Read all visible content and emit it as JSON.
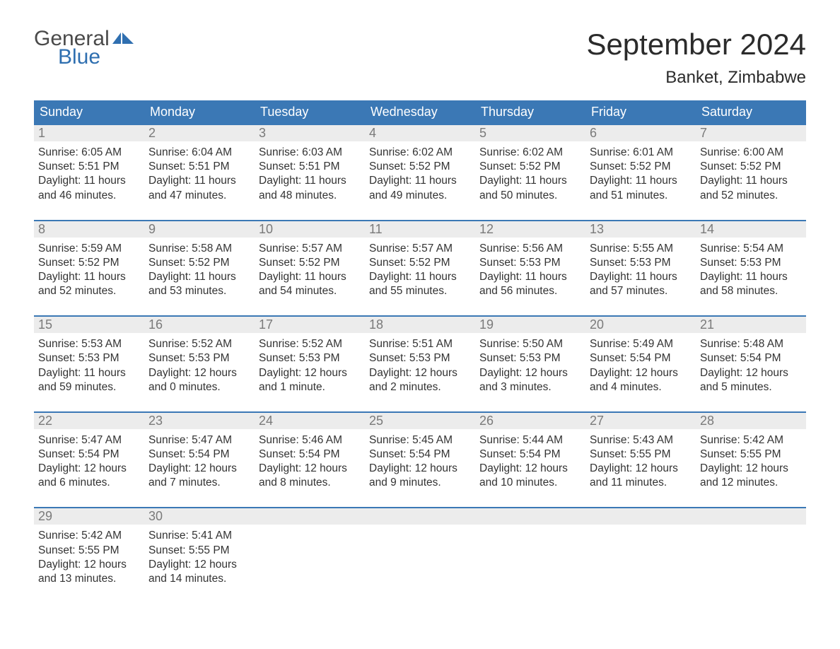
{
  "logo": {
    "text_top": "General",
    "text_bottom": "Blue",
    "flag_color": "#2f6fb0",
    "text_top_color": "#4a4a4a"
  },
  "title": {
    "month": "September 2024",
    "location": "Banket, Zimbabwe"
  },
  "colors": {
    "header_bg": "#3b78b5",
    "header_text": "#ffffff",
    "daynum_bg": "#ececec",
    "daynum_border": "#3b78b5",
    "daynum_text": "#7a7a7a",
    "body_text": "#333333",
    "background": "#ffffff"
  },
  "weekdays": [
    "Sunday",
    "Monday",
    "Tuesday",
    "Wednesday",
    "Thursday",
    "Friday",
    "Saturday"
  ],
  "weeks": [
    [
      {
        "day": 1,
        "sunrise": "6:05 AM",
        "sunset": "5:51 PM",
        "daylight": "11 hours and 46 minutes."
      },
      {
        "day": 2,
        "sunrise": "6:04 AM",
        "sunset": "5:51 PM",
        "daylight": "11 hours and 47 minutes."
      },
      {
        "day": 3,
        "sunrise": "6:03 AM",
        "sunset": "5:51 PM",
        "daylight": "11 hours and 48 minutes."
      },
      {
        "day": 4,
        "sunrise": "6:02 AM",
        "sunset": "5:52 PM",
        "daylight": "11 hours and 49 minutes."
      },
      {
        "day": 5,
        "sunrise": "6:02 AM",
        "sunset": "5:52 PM",
        "daylight": "11 hours and 50 minutes."
      },
      {
        "day": 6,
        "sunrise": "6:01 AM",
        "sunset": "5:52 PM",
        "daylight": "11 hours and 51 minutes."
      },
      {
        "day": 7,
        "sunrise": "6:00 AM",
        "sunset": "5:52 PM",
        "daylight": "11 hours and 52 minutes."
      }
    ],
    [
      {
        "day": 8,
        "sunrise": "5:59 AM",
        "sunset": "5:52 PM",
        "daylight": "11 hours and 52 minutes."
      },
      {
        "day": 9,
        "sunrise": "5:58 AM",
        "sunset": "5:52 PM",
        "daylight": "11 hours and 53 minutes."
      },
      {
        "day": 10,
        "sunrise": "5:57 AM",
        "sunset": "5:52 PM",
        "daylight": "11 hours and 54 minutes."
      },
      {
        "day": 11,
        "sunrise": "5:57 AM",
        "sunset": "5:52 PM",
        "daylight": "11 hours and 55 minutes."
      },
      {
        "day": 12,
        "sunrise": "5:56 AM",
        "sunset": "5:53 PM",
        "daylight": "11 hours and 56 minutes."
      },
      {
        "day": 13,
        "sunrise": "5:55 AM",
        "sunset": "5:53 PM",
        "daylight": "11 hours and 57 minutes."
      },
      {
        "day": 14,
        "sunrise": "5:54 AM",
        "sunset": "5:53 PM",
        "daylight": "11 hours and 58 minutes."
      }
    ],
    [
      {
        "day": 15,
        "sunrise": "5:53 AM",
        "sunset": "5:53 PM",
        "daylight": "11 hours and 59 minutes."
      },
      {
        "day": 16,
        "sunrise": "5:52 AM",
        "sunset": "5:53 PM",
        "daylight": "12 hours and 0 minutes."
      },
      {
        "day": 17,
        "sunrise": "5:52 AM",
        "sunset": "5:53 PM",
        "daylight": "12 hours and 1 minute."
      },
      {
        "day": 18,
        "sunrise": "5:51 AM",
        "sunset": "5:53 PM",
        "daylight": "12 hours and 2 minutes."
      },
      {
        "day": 19,
        "sunrise": "5:50 AM",
        "sunset": "5:53 PM",
        "daylight": "12 hours and 3 minutes."
      },
      {
        "day": 20,
        "sunrise": "5:49 AM",
        "sunset": "5:54 PM",
        "daylight": "12 hours and 4 minutes."
      },
      {
        "day": 21,
        "sunrise": "5:48 AM",
        "sunset": "5:54 PM",
        "daylight": "12 hours and 5 minutes."
      }
    ],
    [
      {
        "day": 22,
        "sunrise": "5:47 AM",
        "sunset": "5:54 PM",
        "daylight": "12 hours and 6 minutes."
      },
      {
        "day": 23,
        "sunrise": "5:47 AM",
        "sunset": "5:54 PM",
        "daylight": "12 hours and 7 minutes."
      },
      {
        "day": 24,
        "sunrise": "5:46 AM",
        "sunset": "5:54 PM",
        "daylight": "12 hours and 8 minutes."
      },
      {
        "day": 25,
        "sunrise": "5:45 AM",
        "sunset": "5:54 PM",
        "daylight": "12 hours and 9 minutes."
      },
      {
        "day": 26,
        "sunrise": "5:44 AM",
        "sunset": "5:54 PM",
        "daylight": "12 hours and 10 minutes."
      },
      {
        "day": 27,
        "sunrise": "5:43 AM",
        "sunset": "5:55 PM",
        "daylight": "12 hours and 11 minutes."
      },
      {
        "day": 28,
        "sunrise": "5:42 AM",
        "sunset": "5:55 PM",
        "daylight": "12 hours and 12 minutes."
      }
    ],
    [
      {
        "day": 29,
        "sunrise": "5:42 AM",
        "sunset": "5:55 PM",
        "daylight": "12 hours and 13 minutes."
      },
      {
        "day": 30,
        "sunrise": "5:41 AM",
        "sunset": "5:55 PM",
        "daylight": "12 hours and 14 minutes."
      },
      null,
      null,
      null,
      null,
      null
    ]
  ],
  "labels": {
    "sunrise": "Sunrise:",
    "sunset": "Sunset:",
    "daylight": "Daylight:"
  }
}
